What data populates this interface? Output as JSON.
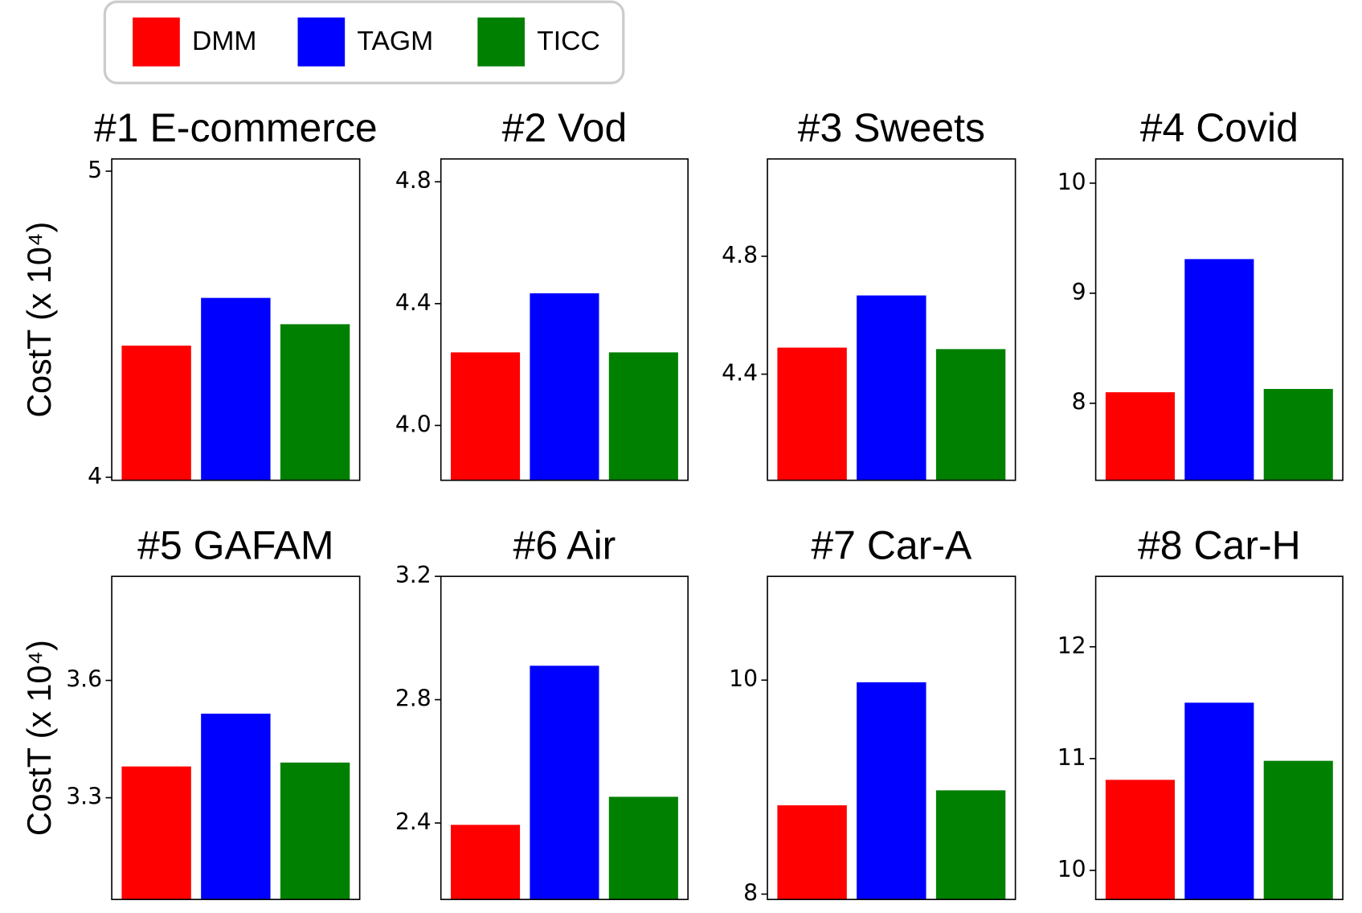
{
  "legend": [
    {
      "name": "DMM",
      "color": "#ff0000"
    },
    {
      "name": "TAGM",
      "color": "#0000ff"
    },
    {
      "name": "TICC",
      "color": "#008000"
    }
  ],
  "chart_data": [
    {
      "type": "bar",
      "title": "#1 E-commerce",
      "ylabel": "CostT (x 10⁴)",
      "values": [
        4.43,
        4.586,
        4.5
      ],
      "ylim": [
        3.99,
        5.04
      ],
      "yticks": [
        4,
        5
      ]
    },
    {
      "type": "bar",
      "title": "#2 Vod",
      "values": [
        4.24,
        4.434,
        4.24
      ],
      "ylim": [
        3.82,
        4.875
      ],
      "yticks": [
        {
          "value": 4,
          "label": "4.0"
        },
        4.4,
        4.8
      ]
    },
    {
      "type": "bar",
      "title": "#3 Sweets",
      "values": [
        4.49,
        4.667,
        4.485
      ],
      "ylim": [
        4.04,
        5.13
      ],
      "yticks": [
        4.4,
        4.8
      ]
    },
    {
      "type": "bar",
      "title": "#4 Covid",
      "values": [
        8.1,
        9.31,
        8.13
      ],
      "ylim": [
        7.3,
        10.22
      ],
      "yticks": [
        8,
        9,
        10
      ]
    },
    {
      "type": "bar",
      "title": "#5 GAFAM",
      "ylabel": "CostT (x 10⁴)",
      "values": [
        3.38,
        3.515,
        3.39
      ],
      "ylim": [
        3.04,
        3.866
      ],
      "yticks": [
        3.3,
        3.6
      ]
    },
    {
      "type": "bar",
      "title": "#6 Air",
      "values": [
        2.394,
        2.91,
        2.485
      ],
      "ylim": [
        2.152,
        3.2
      ],
      "yticks": [
        2.4,
        2.8,
        3.2
      ]
    },
    {
      "type": "bar",
      "title": "#7 Car-A",
      "values": [
        8.83,
        9.98,
        8.97
      ],
      "ylim": [
        7.95,
        10.97
      ],
      "yticks": [
        8,
        10
      ]
    },
    {
      "type": "bar",
      "title": "#8 Car-H",
      "values": [
        10.81,
        11.5,
        10.98
      ],
      "ylim": [
        9.74,
        12.63
      ],
      "yticks": [
        10,
        11,
        12
      ]
    }
  ]
}
